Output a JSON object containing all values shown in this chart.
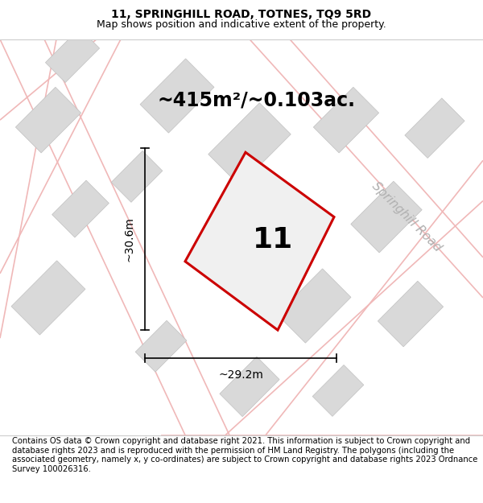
{
  "title": "11, SPRINGHILL ROAD, TOTNES, TQ9 5RD",
  "subtitle": "Map shows position and indicative extent of the property.",
  "footer": "Contains OS data © Crown copyright and database right 2021. This information is subject to Crown copyright and database rights 2023 and is reproduced with the permission of HM Land Registry. The polygons (including the associated geometry, namely x, y co-ordinates) are subject to Crown copyright and database rights 2023 Ordnance Survey 100026316.",
  "area_label": "~415m²/~0.103ac.",
  "dim_horiz": "~29.2m",
  "dim_vert": "~30.6m",
  "plot_number": "11",
  "road_label": "Springhill Road",
  "map_bg": "#f2f2f2",
  "title_bg": "#ffffff",
  "footer_bg": "#ffffff",
  "road_color": "#f0b8b8",
  "road_lw": 1.2,
  "building_color": "#d9d9d9",
  "building_edge": "#c0c0c0",
  "plot_edge": "#cc0000",
  "plot_fill": "#f0f0f0",
  "title_fontsize": 10,
  "subtitle_fontsize": 9,
  "footer_fontsize": 7.2,
  "area_fontsize": 17,
  "dim_fontsize": 10,
  "plot_num_fontsize": 26,
  "road_fontsize": 11
}
